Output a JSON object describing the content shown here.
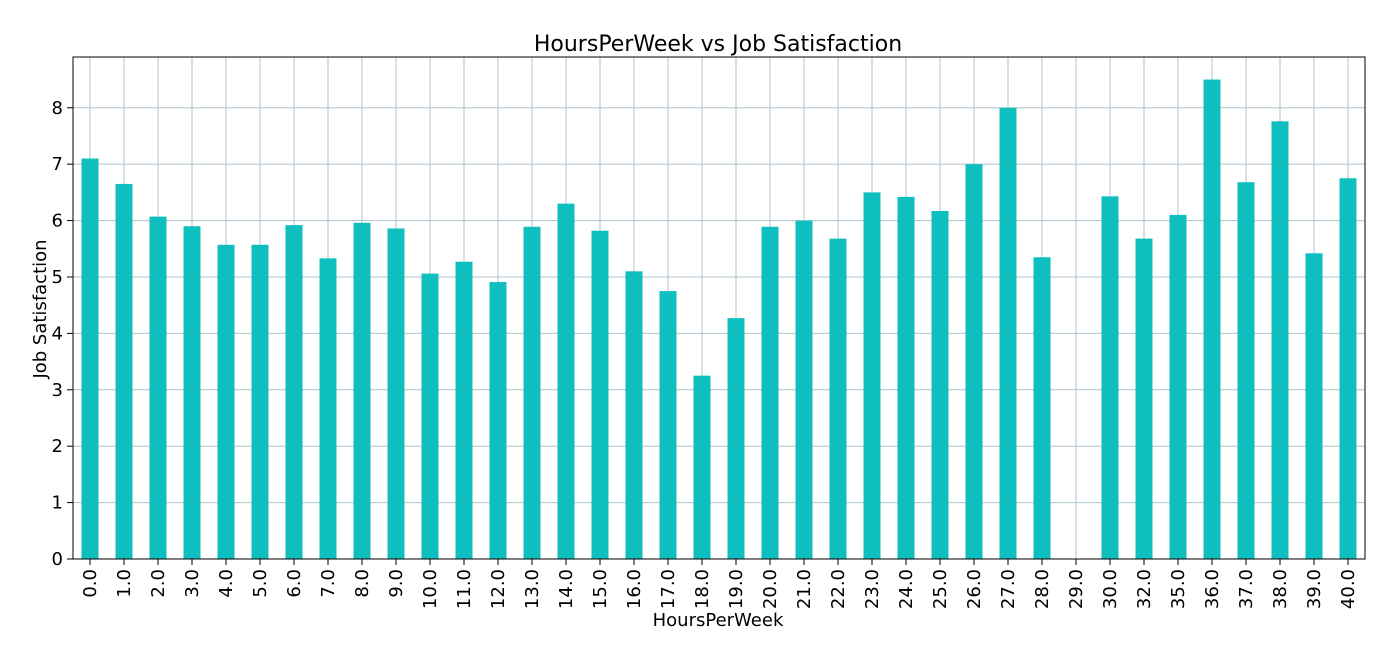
{
  "chart_data": {
    "type": "bar",
    "title": "HoursPerWeek vs Job Satisfaction",
    "xlabel": "HoursPerWeek",
    "ylabel": "Job Satisfaction",
    "categories": [
      "0.0",
      "1.0",
      "2.0",
      "3.0",
      "4.0",
      "5.0",
      "6.0",
      "7.0",
      "8.0",
      "9.0",
      "10.0",
      "11.0",
      "12.0",
      "13.0",
      "14.0",
      "15.0",
      "16.0",
      "17.0",
      "18.0",
      "19.0",
      "20.0",
      "21.0",
      "22.0",
      "23.0",
      "24.0",
      "25.0",
      "26.0",
      "27.0",
      "28.0",
      "29.0",
      "30.0",
      "32.0",
      "35.0",
      "36.0",
      "37.0",
      "38.0",
      "39.0",
      "40.0"
    ],
    "values": [
      7.1,
      6.65,
      6.07,
      5.9,
      5.57,
      5.57,
      5.92,
      5.33,
      5.96,
      5.86,
      5.06,
      5.27,
      4.91,
      5.89,
      6.3,
      5.82,
      5.1,
      4.75,
      3.25,
      4.27,
      5.89,
      6.0,
      5.68,
      6.5,
      6.42,
      6.17,
      7.0,
      8.0,
      5.35,
      0.0,
      6.43,
      5.68,
      6.1,
      8.5,
      6.68,
      7.76,
      5.42,
      6.75
    ],
    "ylim": [
      0,
      8.9
    ],
    "yticks": [
      "0",
      "1",
      "2",
      "3",
      "4",
      "5",
      "6",
      "7",
      "8"
    ],
    "grid": true,
    "bar_color": "#0fbfbf",
    "grid_color": "#b0c4cc"
  }
}
